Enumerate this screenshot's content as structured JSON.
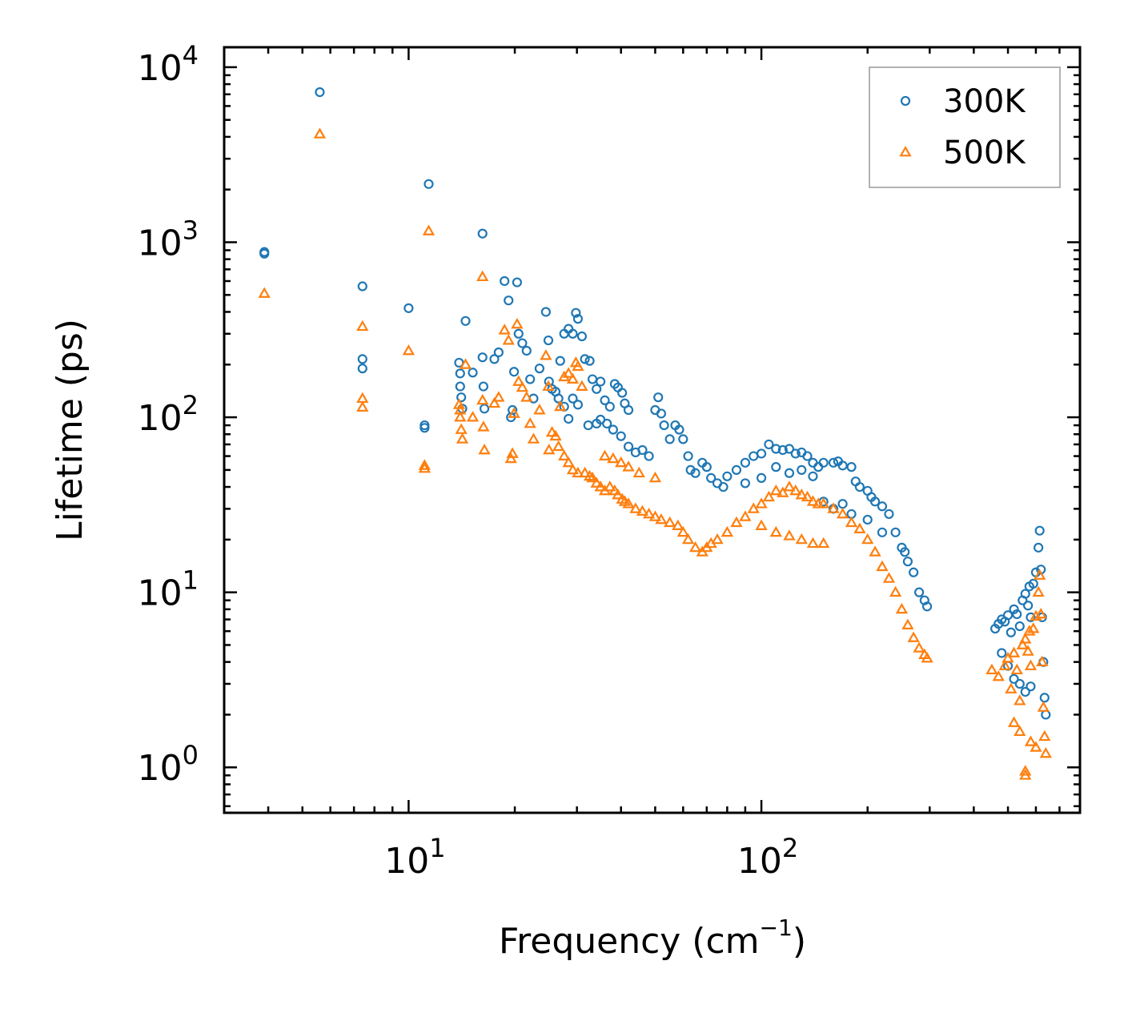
{
  "chart_data": {
    "type": "scatter",
    "xscale": "log",
    "yscale": "log",
    "xlabel": "Frequency (cm",
    "xlabel_sup": "−1",
    "xlabel_close": ")",
    "ylabel": "Lifetime (ps)",
    "xlim": [
      3,
      800
    ],
    "ylim": [
      0.55,
      13000
    ],
    "x_ticks": [
      {
        "value": 10,
        "base": "10",
        "exp": "1"
      },
      {
        "value": 100,
        "base": "10",
        "exp": "2"
      }
    ],
    "y_ticks": [
      {
        "value": 1,
        "base": "10",
        "exp": "0"
      },
      {
        "value": 10,
        "base": "10",
        "exp": "1"
      },
      {
        "value": 100,
        "base": "10",
        "exp": "2"
      },
      {
        "value": 1000,
        "base": "10",
        "exp": "3"
      },
      {
        "value": 10000,
        "base": "10",
        "exp": "4"
      }
    ],
    "legend_position": "top-right",
    "series": [
      {
        "name": "300K",
        "color": "#1f77b4",
        "marker": "circle",
        "points": [
          [
            3.9,
            880
          ],
          [
            3.9,
            860
          ],
          [
            5.6,
            7200
          ],
          [
            7.4,
            560
          ],
          [
            7.4,
            215
          ],
          [
            7.4,
            190
          ],
          [
            10.0,
            420
          ],
          [
            11.1,
            90
          ],
          [
            11.1,
            87
          ],
          [
            11.4,
            2150
          ],
          [
            13.9,
            205
          ],
          [
            14.0,
            178
          ],
          [
            14.0,
            150
          ],
          [
            14.1,
            130
          ],
          [
            14.2,
            112
          ],
          [
            14.5,
            355
          ],
          [
            15.2,
            180
          ],
          [
            16.2,
            1120
          ],
          [
            16.2,
            220
          ],
          [
            16.3,
            150
          ],
          [
            16.4,
            112
          ],
          [
            17.5,
            215
          ],
          [
            18.0,
            235
          ],
          [
            18.7,
            600
          ],
          [
            19.2,
            465
          ],
          [
            19.5,
            100
          ],
          [
            19.7,
            110
          ],
          [
            19.9,
            182
          ],
          [
            20.3,
            590
          ],
          [
            20.5,
            300
          ],
          [
            21.0,
            265
          ],
          [
            21.6,
            240
          ],
          [
            22.1,
            165
          ],
          [
            22.6,
            128
          ],
          [
            23.5,
            190
          ],
          [
            24.5,
            400
          ],
          [
            24.9,
            275
          ],
          [
            25.5,
            145
          ],
          [
            26.1,
            140
          ],
          [
            26.9,
            210
          ],
          [
            27.6,
            300
          ],
          [
            28.4,
            320
          ],
          [
            29.2,
            300
          ],
          [
            29.8,
            395
          ],
          [
            30.2,
            365
          ],
          [
            31.0,
            290
          ],
          [
            25.0,
            160
          ],
          [
            26.6,
            128
          ],
          [
            27.6,
            115
          ],
          [
            28.4,
            98
          ],
          [
            29.2,
            128
          ],
          [
            30.2,
            118
          ],
          [
            31.6,
            215
          ],
          [
            32.6,
            210
          ],
          [
            33.2,
            165
          ],
          [
            34.1,
            145
          ],
          [
            35.0,
            160
          ],
          [
            36.0,
            125
          ],
          [
            37.2,
            115
          ],
          [
            38.4,
            155
          ],
          [
            39.2,
            148
          ],
          [
            40.3,
            138
          ],
          [
            41.0,
            120
          ],
          [
            42.0,
            110
          ],
          [
            32.3,
            90
          ],
          [
            34.1,
            92
          ],
          [
            35.0,
            97
          ],
          [
            36.5,
            92
          ],
          [
            38.0,
            85
          ],
          [
            40.0,
            78
          ],
          [
            42.0,
            68
          ],
          [
            44.0,
            63
          ],
          [
            46.0,
            65
          ],
          [
            48.0,
            60
          ],
          [
            50.0,
            110
          ],
          [
            51.0,
            130
          ],
          [
            52.0,
            105
          ],
          [
            53.0,
            90
          ],
          [
            55.0,
            75
          ],
          [
            57.0,
            90
          ],
          [
            58.5,
            85
          ],
          [
            60.0,
            75
          ],
          [
            62.0,
            60
          ],
          [
            63.0,
            50
          ],
          [
            65.0,
            48
          ],
          [
            68.0,
            55
          ],
          [
            70.0,
            52
          ],
          [
            72.0,
            45
          ],
          [
            75.0,
            42
          ],
          [
            78.0,
            40
          ],
          [
            80.0,
            46
          ],
          [
            85.0,
            50
          ],
          [
            90.0,
            55
          ],
          [
            95.0,
            60
          ],
          [
            100.0,
            62
          ],
          [
            105.0,
            70
          ],
          [
            110.0,
            66
          ],
          [
            115.0,
            65
          ],
          [
            120.0,
            66
          ],
          [
            125.0,
            62
          ],
          [
            130.0,
            63
          ],
          [
            135.0,
            60
          ],
          [
            140.0,
            55
          ],
          [
            145.0,
            52
          ],
          [
            150.0,
            55
          ],
          [
            160.0,
            55
          ],
          [
            165.0,
            56
          ],
          [
            170.0,
            53
          ],
          [
            180.0,
            52
          ],
          [
            185.0,
            43
          ],
          [
            190.0,
            40
          ],
          [
            200.0,
            38
          ],
          [
            205.0,
            35
          ],
          [
            210.0,
            33
          ],
          [
            220.0,
            31
          ],
          [
            230.0,
            28
          ],
          [
            240.0,
            22
          ],
          [
            250.0,
            18
          ],
          [
            255.0,
            17
          ],
          [
            260.0,
            15
          ],
          [
            270.0,
            13
          ],
          [
            280.0,
            10
          ],
          [
            290.0,
            9
          ],
          [
            295.0,
            8.3
          ],
          [
            90.0,
            42
          ],
          [
            100.0,
            45
          ],
          [
            110.0,
            52
          ],
          [
            120.0,
            48
          ],
          [
            130.0,
            50
          ],
          [
            140.0,
            46
          ],
          [
            150.0,
            33
          ],
          [
            160.0,
            30
          ],
          [
            170.0,
            32
          ],
          [
            180.0,
            28
          ],
          [
            200.0,
            26
          ],
          [
            220.0,
            22
          ],
          [
            460.0,
            6.2
          ],
          [
            470.0,
            6.6
          ],
          [
            480.0,
            7.0
          ],
          [
            490.0,
            6.8
          ],
          [
            500.0,
            7.4
          ],
          [
            510.0,
            5.9
          ],
          [
            520.0,
            8.0
          ],
          [
            530.0,
            7.5
          ],
          [
            540.0,
            6.4
          ],
          [
            550.0,
            9.0
          ],
          [
            560.0,
            9.8
          ],
          [
            570.0,
            8.4
          ],
          [
            575.0,
            10.8
          ],
          [
            580.0,
            7.2
          ],
          [
            590.0,
            11.2
          ],
          [
            600.0,
            13.0
          ],
          [
            610.0,
            18.0
          ],
          [
            615.0,
            22.5
          ],
          [
            620.0,
            13.5
          ],
          [
            625.0,
            7.2
          ],
          [
            630.0,
            4.0
          ],
          [
            635.0,
            2.5
          ],
          [
            640.0,
            2.0
          ],
          [
            480.0,
            4.5
          ],
          [
            500.0,
            3.8
          ],
          [
            520.0,
            3.2
          ],
          [
            540.0,
            3.0
          ],
          [
            560.0,
            2.7
          ],
          [
            580.0,
            2.9
          ]
        ]
      },
      {
        "name": "500K",
        "color": "#ff7f0e",
        "marker": "triangle",
        "points": [
          [
            3.9,
            510
          ],
          [
            5.6,
            4150
          ],
          [
            7.4,
            330
          ],
          [
            7.4,
            128
          ],
          [
            7.4,
            114
          ],
          [
            10.0,
            240
          ],
          [
            11.1,
            53
          ],
          [
            11.1,
            51
          ],
          [
            11.4,
            1160
          ],
          [
            13.9,
            118
          ],
          [
            14.0,
            110
          ],
          [
            14.0,
            100
          ],
          [
            14.1,
            85
          ],
          [
            14.2,
            75
          ],
          [
            14.5,
            200
          ],
          [
            15.2,
            100
          ],
          [
            16.2,
            635
          ],
          [
            16.2,
            125
          ],
          [
            16.3,
            88
          ],
          [
            16.4,
            65
          ],
          [
            17.5,
            120
          ],
          [
            18.0,
            130
          ],
          [
            18.7,
            315
          ],
          [
            19.2,
            275
          ],
          [
            19.5,
            58
          ],
          [
            19.7,
            62
          ],
          [
            19.9,
            105
          ],
          [
            20.3,
            340
          ],
          [
            20.5,
            160
          ],
          [
            21.0,
            148
          ],
          [
            21.6,
            130
          ],
          [
            22.1,
            92
          ],
          [
            22.6,
            75
          ],
          [
            23.5,
            110
          ],
          [
            24.5,
            225
          ],
          [
            24.9,
            150
          ],
          [
            25.5,
            82
          ],
          [
            26.1,
            78
          ],
          [
            26.9,
            115
          ],
          [
            27.6,
            170
          ],
          [
            28.4,
            178
          ],
          [
            29.2,
            165
          ],
          [
            29.8,
            205
          ],
          [
            30.2,
            195
          ],
          [
            31.0,
            150
          ],
          [
            25.0,
            65
          ],
          [
            26.6,
            68
          ],
          [
            27.6,
            60
          ],
          [
            28.4,
            55
          ],
          [
            29.2,
            50
          ],
          [
            30.2,
            48
          ],
          [
            31.6,
            48
          ],
          [
            32.6,
            46
          ],
          [
            33.2,
            45
          ],
          [
            34.1,
            42
          ],
          [
            35.0,
            40
          ],
          [
            36.0,
            38
          ],
          [
            37.2,
            40
          ],
          [
            38.4,
            38
          ],
          [
            39.2,
            36
          ],
          [
            40.3,
            34
          ],
          [
            41.0,
            33
          ],
          [
            42.0,
            32
          ],
          [
            44.0,
            30
          ],
          [
            46.0,
            29
          ],
          [
            48.0,
            28
          ],
          [
            50.0,
            27
          ],
          [
            52.0,
            26
          ],
          [
            55.0,
            25
          ],
          [
            58.0,
            24
          ],
          [
            60.0,
            22
          ],
          [
            62.0,
            20
          ],
          [
            65.0,
            18
          ],
          [
            68.0,
            17
          ],
          [
            70.0,
            18
          ],
          [
            72.0,
            19
          ],
          [
            75.0,
            20
          ],
          [
            80.0,
            22
          ],
          [
            85.0,
            25
          ],
          [
            90.0,
            27
          ],
          [
            95.0,
            30
          ],
          [
            100.0,
            32
          ],
          [
            105.0,
            35
          ],
          [
            110.0,
            38
          ],
          [
            115.0,
            37
          ],
          [
            120.0,
            40
          ],
          [
            125.0,
            38
          ],
          [
            130.0,
            36
          ],
          [
            135.0,
            35
          ],
          [
            140.0,
            33
          ],
          [
            145.0,
            32
          ],
          [
            150.0,
            32
          ],
          [
            160.0,
            30
          ],
          [
            170.0,
            28
          ],
          [
            180.0,
            25
          ],
          [
            190.0,
            23
          ],
          [
            200.0,
            20
          ],
          [
            210.0,
            17
          ],
          [
            220.0,
            14
          ],
          [
            230.0,
            12
          ],
          [
            240.0,
            10
          ],
          [
            250.0,
            8
          ],
          [
            260.0,
            6.5
          ],
          [
            270.0,
            5.5
          ],
          [
            280.0,
            4.8
          ],
          [
            290.0,
            4.4
          ],
          [
            295.0,
            4.2
          ],
          [
            36.0,
            60
          ],
          [
            38.0,
            58
          ],
          [
            40.0,
            55
          ],
          [
            42.0,
            52
          ],
          [
            45.0,
            48
          ],
          [
            50.0,
            45
          ],
          [
            100.0,
            24
          ],
          [
            110.0,
            22
          ],
          [
            120.0,
            21
          ],
          [
            130.0,
            20
          ],
          [
            140.0,
            19
          ],
          [
            150.0,
            19
          ],
          [
            450.0,
            3.6
          ],
          [
            470.0,
            3.3
          ],
          [
            490.0,
            3.8
          ],
          [
            500.0,
            4.2
          ],
          [
            510.0,
            2.8
          ],
          [
            520.0,
            4.5
          ],
          [
            530.0,
            3.6
          ],
          [
            540.0,
            2.4
          ],
          [
            550.0,
            5.0
          ],
          [
            560.0,
            5.4
          ],
          [
            570.0,
            4.6
          ],
          [
            575.0,
            6.0
          ],
          [
            580.0,
            3.8
          ],
          [
            590.0,
            6.2
          ],
          [
            600.0,
            7.3
          ],
          [
            610.0,
            10.0
          ],
          [
            615.0,
            12.5
          ],
          [
            620.0,
            7.5
          ],
          [
            625.0,
            4.0
          ],
          [
            630.0,
            2.2
          ],
          [
            635.0,
            1.5
          ],
          [
            640.0,
            1.2
          ],
          [
            560.0,
            0.95
          ],
          [
            560.0,
            0.9
          ],
          [
            520.0,
            1.8
          ],
          [
            540.0,
            1.6
          ],
          [
            580.0,
            1.4
          ],
          [
            600.0,
            1.3
          ]
        ]
      }
    ]
  }
}
